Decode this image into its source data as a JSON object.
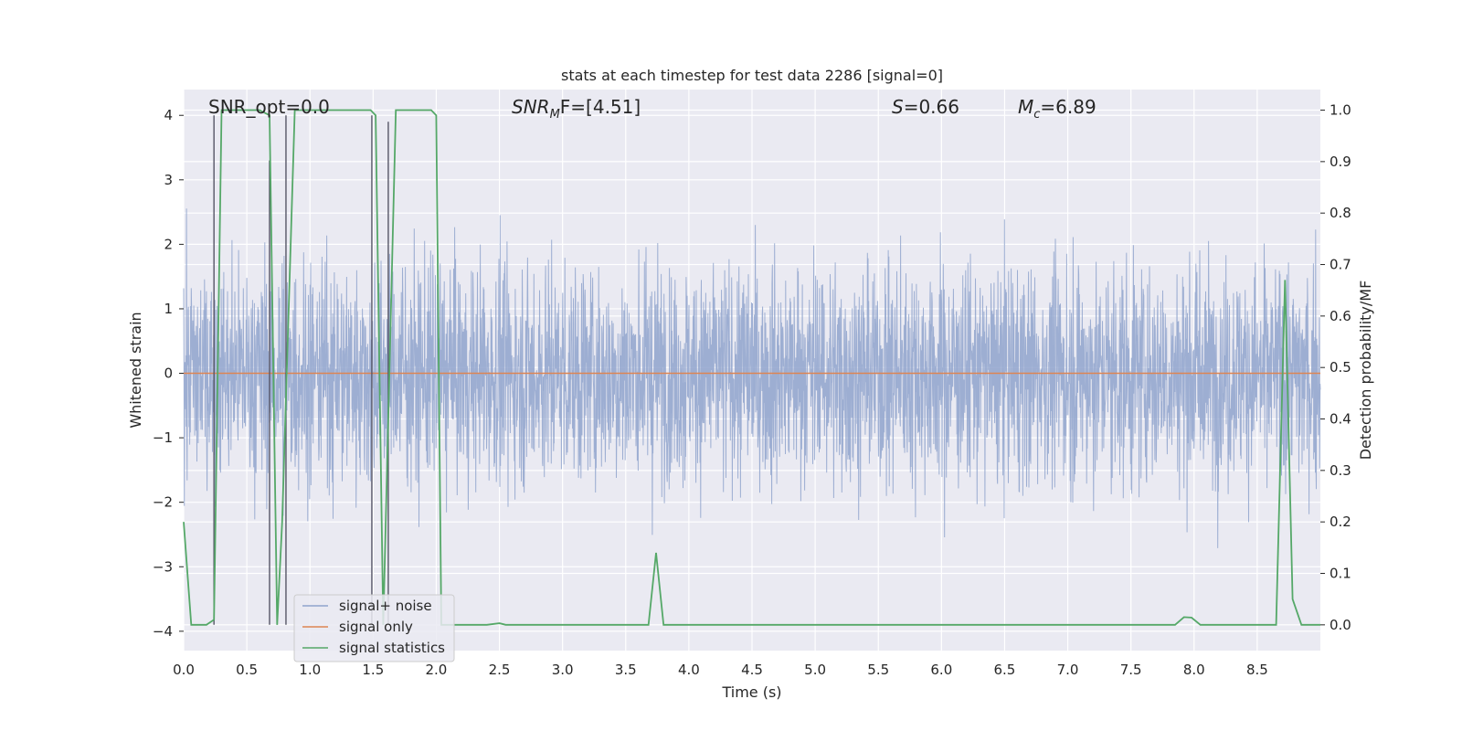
{
  "chart_data": {
    "type": "line",
    "title": "stats at each timestep for test data 2286 [signal=0]",
    "xlabel": "Time (s)",
    "ylabel_left": "Whitened strain",
    "ylabel_right": "Detection probability/MF",
    "xlim": [
      0.0,
      9.0
    ],
    "ylim_left": [
      -4.3,
      4.4
    ],
    "ylim_right": [
      -0.05,
      1.04
    ],
    "x_ticks": [
      "0.0",
      "0.5",
      "1.0",
      "1.5",
      "2.0",
      "2.5",
      "3.0",
      "3.5",
      "4.0",
      "4.5",
      "5.0",
      "5.5",
      "6.0",
      "6.5",
      "7.0",
      "7.5",
      "8.0",
      "8.5"
    ],
    "y_ticks_left": [
      "4",
      "3",
      "2",
      "1",
      "0",
      "−1",
      "−2",
      "−3",
      "−4"
    ],
    "y_ticks_right": [
      "1.0",
      "0.9",
      "0.8",
      "0.7",
      "0.6",
      "0.5",
      "0.4",
      "0.3",
      "0.2",
      "0.1",
      "0.0"
    ],
    "grid": true,
    "legend_position": "lower-left",
    "annotations": {
      "snr_opt": "SNR_opt=0.0",
      "snr_mf_base": "SNR",
      "snr_mf_sub": "M",
      "snr_mf_rest": "F=[4.51]",
      "s_label": "S",
      "s_value": "=0.66",
      "mc_base": "M",
      "mc_sub": "c",
      "mc_value": "=6.89"
    },
    "series": [
      {
        "name": "signal+ noise",
        "color": "#8fa3cc",
        "description_values": "white noise, amplitude envelope approx ±2.5 with peaks to ±4",
        "seed": 2286
      },
      {
        "name": "signal only",
        "color": "#dd8452",
        "x": [
          0.0,
          9.0
        ],
        "y": [
          0.0,
          0.0
        ]
      },
      {
        "name": "signal statistics",
        "color": "#55a868",
        "axis": "right",
        "x": [
          0.0,
          0.06,
          0.18,
          0.24,
          0.3,
          0.6,
          0.68,
          0.74,
          0.78,
          0.88,
          1.2,
          1.48,
          1.52,
          1.58,
          1.68,
          1.96,
          2.0,
          2.04,
          2.1,
          2.4,
          2.5,
          2.55,
          3.68,
          3.74,
          3.8,
          3.86,
          4.2,
          7.85,
          7.92,
          7.98,
          8.05,
          8.6,
          8.65,
          8.72,
          8.78,
          8.85,
          9.0
        ],
        "y": [
          0.2,
          0.0,
          0.0,
          0.01,
          1.0,
          1.0,
          0.99,
          0.0,
          0.2,
          1.0,
          1.0,
          1.0,
          0.99,
          0.0,
          1.0,
          1.0,
          0.99,
          0.0,
          0.0,
          0.0,
          0.003,
          0.0,
          0.0,
          0.14,
          0.0,
          0.0,
          0.0,
          0.0,
          0.015,
          0.014,
          0.0,
          0.0,
          0.0,
          0.67,
          0.05,
          0.0,
          0.0
        ]
      },
      {
        "name": "detection markers",
        "color": "#555566",
        "x": [
          0.24,
          0.68,
          0.81,
          1.49,
          1.62
        ],
        "y_top": [
          4.0,
          3.3,
          4.0,
          4.0,
          3.9
        ],
        "y_bottom": [
          -3.9,
          -3.9,
          -3.9,
          -3.9,
          -3.9
        ]
      }
    ]
  }
}
